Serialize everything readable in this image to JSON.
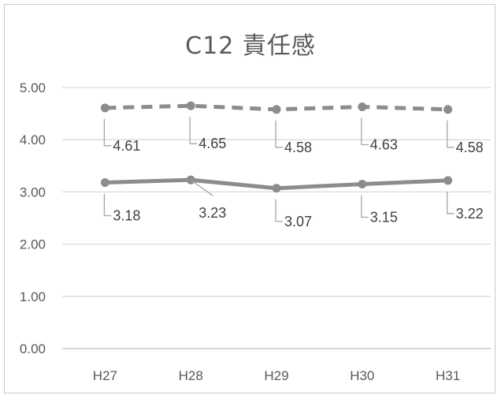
{
  "chart_data": {
    "type": "line",
    "title": "C12 責任感",
    "categories": [
      "H27",
      "H28",
      "H29",
      "H30",
      "H31"
    ],
    "ylim": [
      0,
      5
    ],
    "yticks": [
      "0.00",
      "1.00",
      "2.00",
      "3.00",
      "4.00",
      "5.00"
    ],
    "grid": "horizontal",
    "series": [
      {
        "values": [
          4.61,
          4.65,
          4.58,
          4.63,
          4.58
        ],
        "labels": [
          "4.61",
          "4.65",
          "4.58",
          "4.63",
          "4.58"
        ],
        "style": "dashed",
        "color": "#8c8c8c"
      },
      {
        "values": [
          3.18,
          3.23,
          3.07,
          3.15,
          3.22
        ],
        "labels": [
          "3.18",
          "3.23",
          "3.07",
          "3.15",
          "3.22"
        ],
        "style": "solid",
        "color": "#8c8c8c"
      }
    ]
  }
}
